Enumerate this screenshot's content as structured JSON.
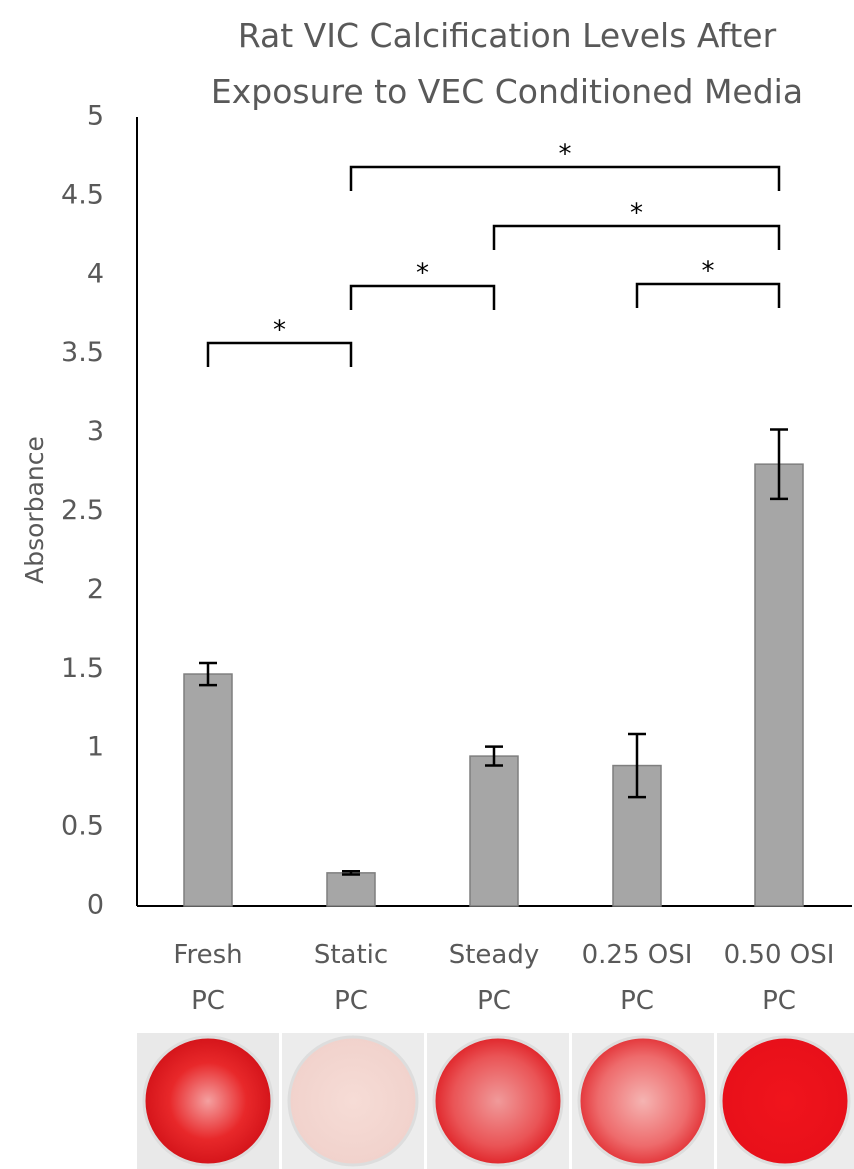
{
  "chart_data": {
    "type": "bar",
    "title": "Rat VIC Calcification Levels After\nExposure to VEC Conditioned Media",
    "y_label": "Absorbance",
    "categories": [
      "Fresh\nPC",
      "Static\nPC",
      "Steady\nPC",
      "0.25 OSI\nPC",
      "0.50 OSI\nPC"
    ],
    "values": [
      1.47,
      0.21,
      0.95,
      0.89,
      2.8
    ],
    "errors": [
      0.07,
      0.01,
      0.06,
      0.2,
      0.22
    ],
    "color": "#a6a6a6",
    "ylim": [
      0,
      5
    ],
    "yticks": [
      0,
      0.5,
      1,
      1.5,
      2,
      2.5,
      3,
      3.5,
      4,
      4.5,
      5
    ],
    "grid": false,
    "significance": [
      {
        "label": "*",
        "between": [
          0,
          1
        ]
      },
      {
        "label": "*",
        "between": [
          1,
          2
        ]
      },
      {
        "label": "*",
        "between": [
          3,
          4
        ]
      },
      {
        "label": "*",
        "between": [
          2,
          4
        ]
      },
      {
        "label": "*",
        "between": [
          1,
          4
        ]
      }
    ]
  }
}
